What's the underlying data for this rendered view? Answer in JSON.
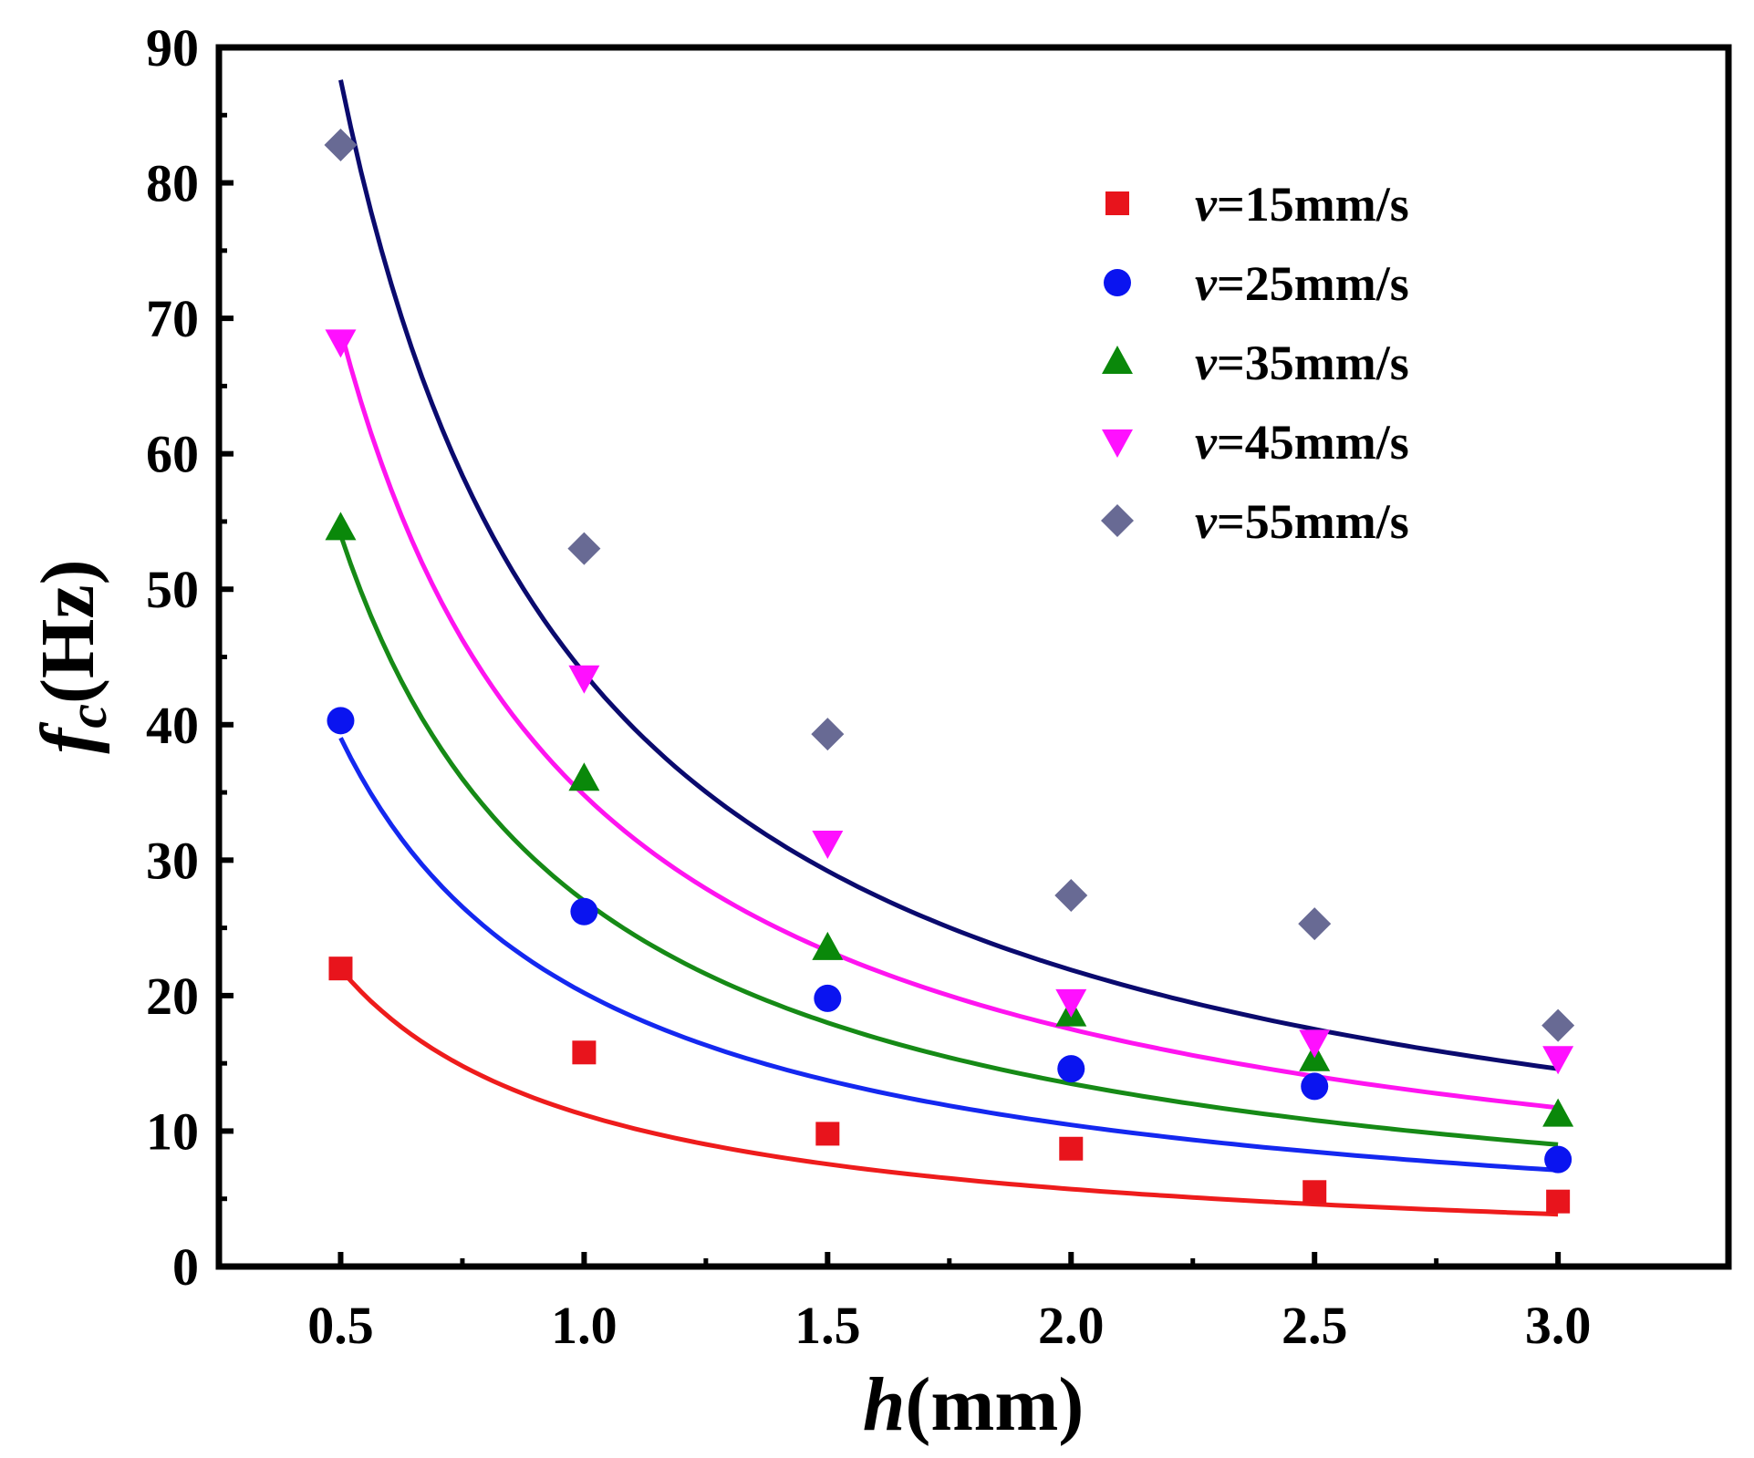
{
  "chart_data": {
    "type": "scatter",
    "title": "",
    "xlabel": {
      "var": "h",
      "unit": "(mm)"
    },
    "ylabel": {
      "var": "f",
      "sub": "c",
      "unit": "(Hz)"
    },
    "xlim": [
      0.25,
      3.35
    ],
    "ylim": [
      0,
      90
    ],
    "xticks": [
      0.5,
      1.0,
      1.5,
      2.0,
      2.5,
      3.0
    ],
    "xtick_labels": [
      "0.5",
      "1.0",
      "1.5",
      "2.0",
      "2.5",
      "3.0"
    ],
    "yticks": [
      0,
      10,
      20,
      30,
      40,
      50,
      60,
      70,
      80,
      90
    ],
    "ytick_labels": [
      "0",
      "10",
      "20",
      "30",
      "40",
      "50",
      "60",
      "70",
      "80",
      "90"
    ],
    "legend_position": "top-right",
    "x": [
      0.5,
      1.0,
      1.5,
      2.0,
      2.5,
      3.0
    ],
    "series": [
      {
        "name": "v=15mm/s",
        "var": "v",
        "rest": "=15mm/s",
        "marker": "square",
        "color": "#e8141c",
        "line_color": "#ee1c1c",
        "values": [
          22.0,
          15.8,
          9.8,
          8.7,
          5.5,
          4.8
        ],
        "fit_coeff": 11.2,
        "fit_exp": 0.97
      },
      {
        "name": "v=25mm/s",
        "var": "v",
        "rest": "=25mm/s",
        "marker": "circle",
        "color": "#0a14f0",
        "line_color": "#1428f0",
        "values": [
          40.3,
          26.2,
          19.8,
          14.6,
          13.3,
          7.9
        ],
        "fit_coeff": 20.2,
        "fit_exp": 0.95
      },
      {
        "name": "v=35mm/s",
        "var": "v",
        "rest": "=35mm/s",
        "marker": "triangle-up",
        "color": "#0a880a",
        "line_color": "#168a16",
        "values": [
          54.5,
          36.0,
          23.5,
          18.6,
          15.3,
          11.2
        ],
        "fit_coeff": 27.0,
        "fit_exp": 1.0
      },
      {
        "name": "v=45mm/s",
        "var": "v",
        "rest": "=45mm/s",
        "marker": "triangle-down",
        "color": "#ff10ff",
        "line_color": "#ff14f0",
        "values": [
          68.3,
          43.5,
          31.3,
          19.6,
          16.6,
          15.4
        ],
        "fit_coeff": 34.8,
        "fit_exp": 0.99
      },
      {
        "name": "v=55mm/s",
        "var": "v",
        "rest": "=55mm/s",
        "marker": "diamond",
        "color": "#686a94",
        "line_color": "#0a0a6e",
        "values": [
          82.8,
          53.0,
          39.3,
          27.4,
          25.3,
          17.8
        ],
        "fit_coeff": 43.8,
        "fit_exp": 1.0
      }
    ]
  }
}
